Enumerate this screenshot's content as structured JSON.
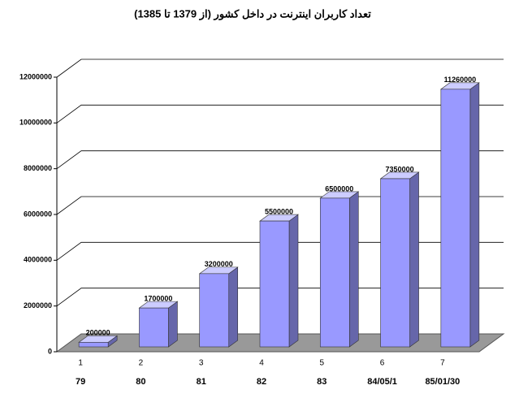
{
  "chart_data": {
    "type": "bar3d",
    "title": "تعداد کاربران اینترنت در داخل کشور (از 1379 تا 1385)",
    "category_numbers": [
      "1",
      "2",
      "3",
      "4",
      "5",
      "6",
      "7"
    ],
    "categories": [
      "79",
      "80",
      "81",
      "82",
      "83",
      "84/05/1",
      "85/01/30"
    ],
    "values": [
      200000,
      1700000,
      3200000,
      5500000,
      6500000,
      7350000,
      11260000
    ],
    "color": "#9999ff",
    "ylim": [
      0,
      12000000
    ],
    "yticks": [
      0,
      2000000,
      4000000,
      6000000,
      8000000,
      10000000,
      12000000
    ],
    "grid": true
  }
}
